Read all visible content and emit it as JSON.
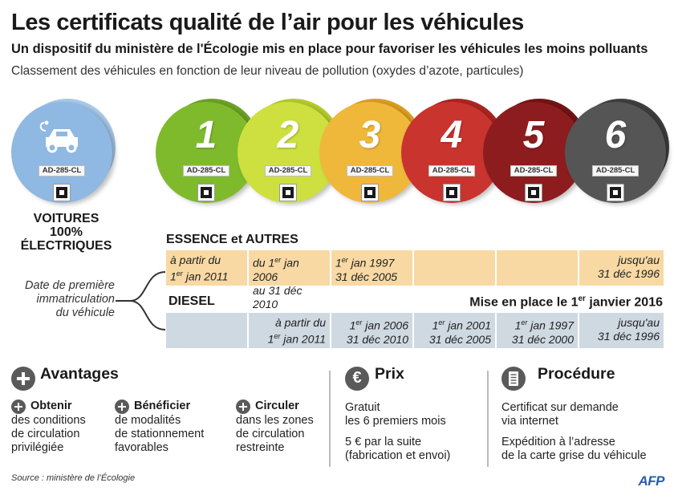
{
  "header": {
    "title": "Les certificats qualité de l’air pour les véhicules",
    "subtitle": "Un dispositif du ministère de l'Écologie mis en place pour favoriser les véhicules les moins polluants",
    "intro": "Classement des véhicules en fonction de leur niveau de pollution (oxydes d’azote, particules)"
  },
  "plate_text": "AD-285-CL",
  "badges": [
    {
      "number": "",
      "color": "#8fb8e2",
      "shade": "#a9cbec",
      "icon": "electric-car-icon"
    },
    {
      "number": "1",
      "color": "#7fba2d",
      "shade": "#6ea326"
    },
    {
      "number": "2",
      "color": "#cde03f",
      "shade": "#b6cc2e"
    },
    {
      "number": "3",
      "color": "#f0b83a",
      "shade": "#dc9f23"
    },
    {
      "number": "4",
      "color": "#c9342e",
      "shade": "#ad2722"
    },
    {
      "number": "5",
      "color": "#8d1c1e",
      "shade": "#741416"
    },
    {
      "number": "6",
      "color": "#555555",
      "shade": "#3f3f3f"
    }
  ],
  "ev_label": {
    "line1": "VOITURES",
    "line2": "100%",
    "line3": "ÉLECTRIQUES"
  },
  "side_label": {
    "line1": "Date de première",
    "line2": "immatriculation",
    "line3": "du véhicule"
  },
  "essence": {
    "title": "ESSENCE et AUTRES",
    "cells": [
      {
        "l1": "à partir du",
        "l2_sup": "er",
        "l2a": "1",
        "l2b": " jan 2011"
      },
      {
        "l1a": "du 1",
        "l1_sup": "er",
        "l1b": " jan 2006",
        "l2": "au 31 déc 2010"
      },
      {
        "l1a": "1",
        "l1_sup": "er",
        "l1b": "  jan 1997",
        "l2": "31 déc 2005"
      },
      {},
      {},
      {
        "l1": "jusqu'au",
        "l2": "31 déc 1996"
      }
    ]
  },
  "diesel": {
    "title": "DIESEL",
    "mise_a": "Mise en place le 1",
    "mise_sup": "er",
    "mise_b": " janvier 2016",
    "cells": [
      {},
      {
        "l1": "à partir du",
        "l2a": "1",
        "l2_sup": "er",
        "l2b": " jan 2011"
      },
      {
        "l1a": "1",
        "l1_sup": "er",
        "l1b": " jan 2006",
        "l2": "31 déc 2010"
      },
      {
        "l1a": "1",
        "l1_sup": "er",
        "l1b": " jan 2001",
        "l2": "31 déc 2005"
      },
      {
        "l1a": "1",
        "l1_sup": "er",
        "l1b": " jan 1997",
        "l2": "31 déc 2000"
      },
      {
        "l1": "jusqu'au",
        "l2": "31 déc 1996"
      }
    ]
  },
  "avantages": {
    "title": "Avantages",
    "items": [
      {
        "title": "Obtenir",
        "l1": "des conditions",
        "l2": "de circulation",
        "l3": "privilégiée"
      },
      {
        "title": "Bénéficier",
        "l1": "de modalités",
        "l2": "de stationnement",
        "l3": "favorables"
      },
      {
        "title": "Circuler",
        "l1": "dans les zones",
        "l2": "de circulation",
        "l3": "restreinte"
      }
    ]
  },
  "prix": {
    "title": "Prix",
    "icon_glyph": "€",
    "l1": "Gratuit",
    "l2": "les 6 premiers mois",
    "l3": "5 € par la suite",
    "l4": "(fabrication et envoi)"
  },
  "procedure": {
    "title": "Procédure",
    "l1": "Certificat sur demande",
    "l2": "via internet",
    "l3": "Expédition à l’adresse",
    "l4": "de la carte grise du véhicule"
  },
  "source": "Source : ministère de l’Écologie",
  "logo": "AFP"
}
